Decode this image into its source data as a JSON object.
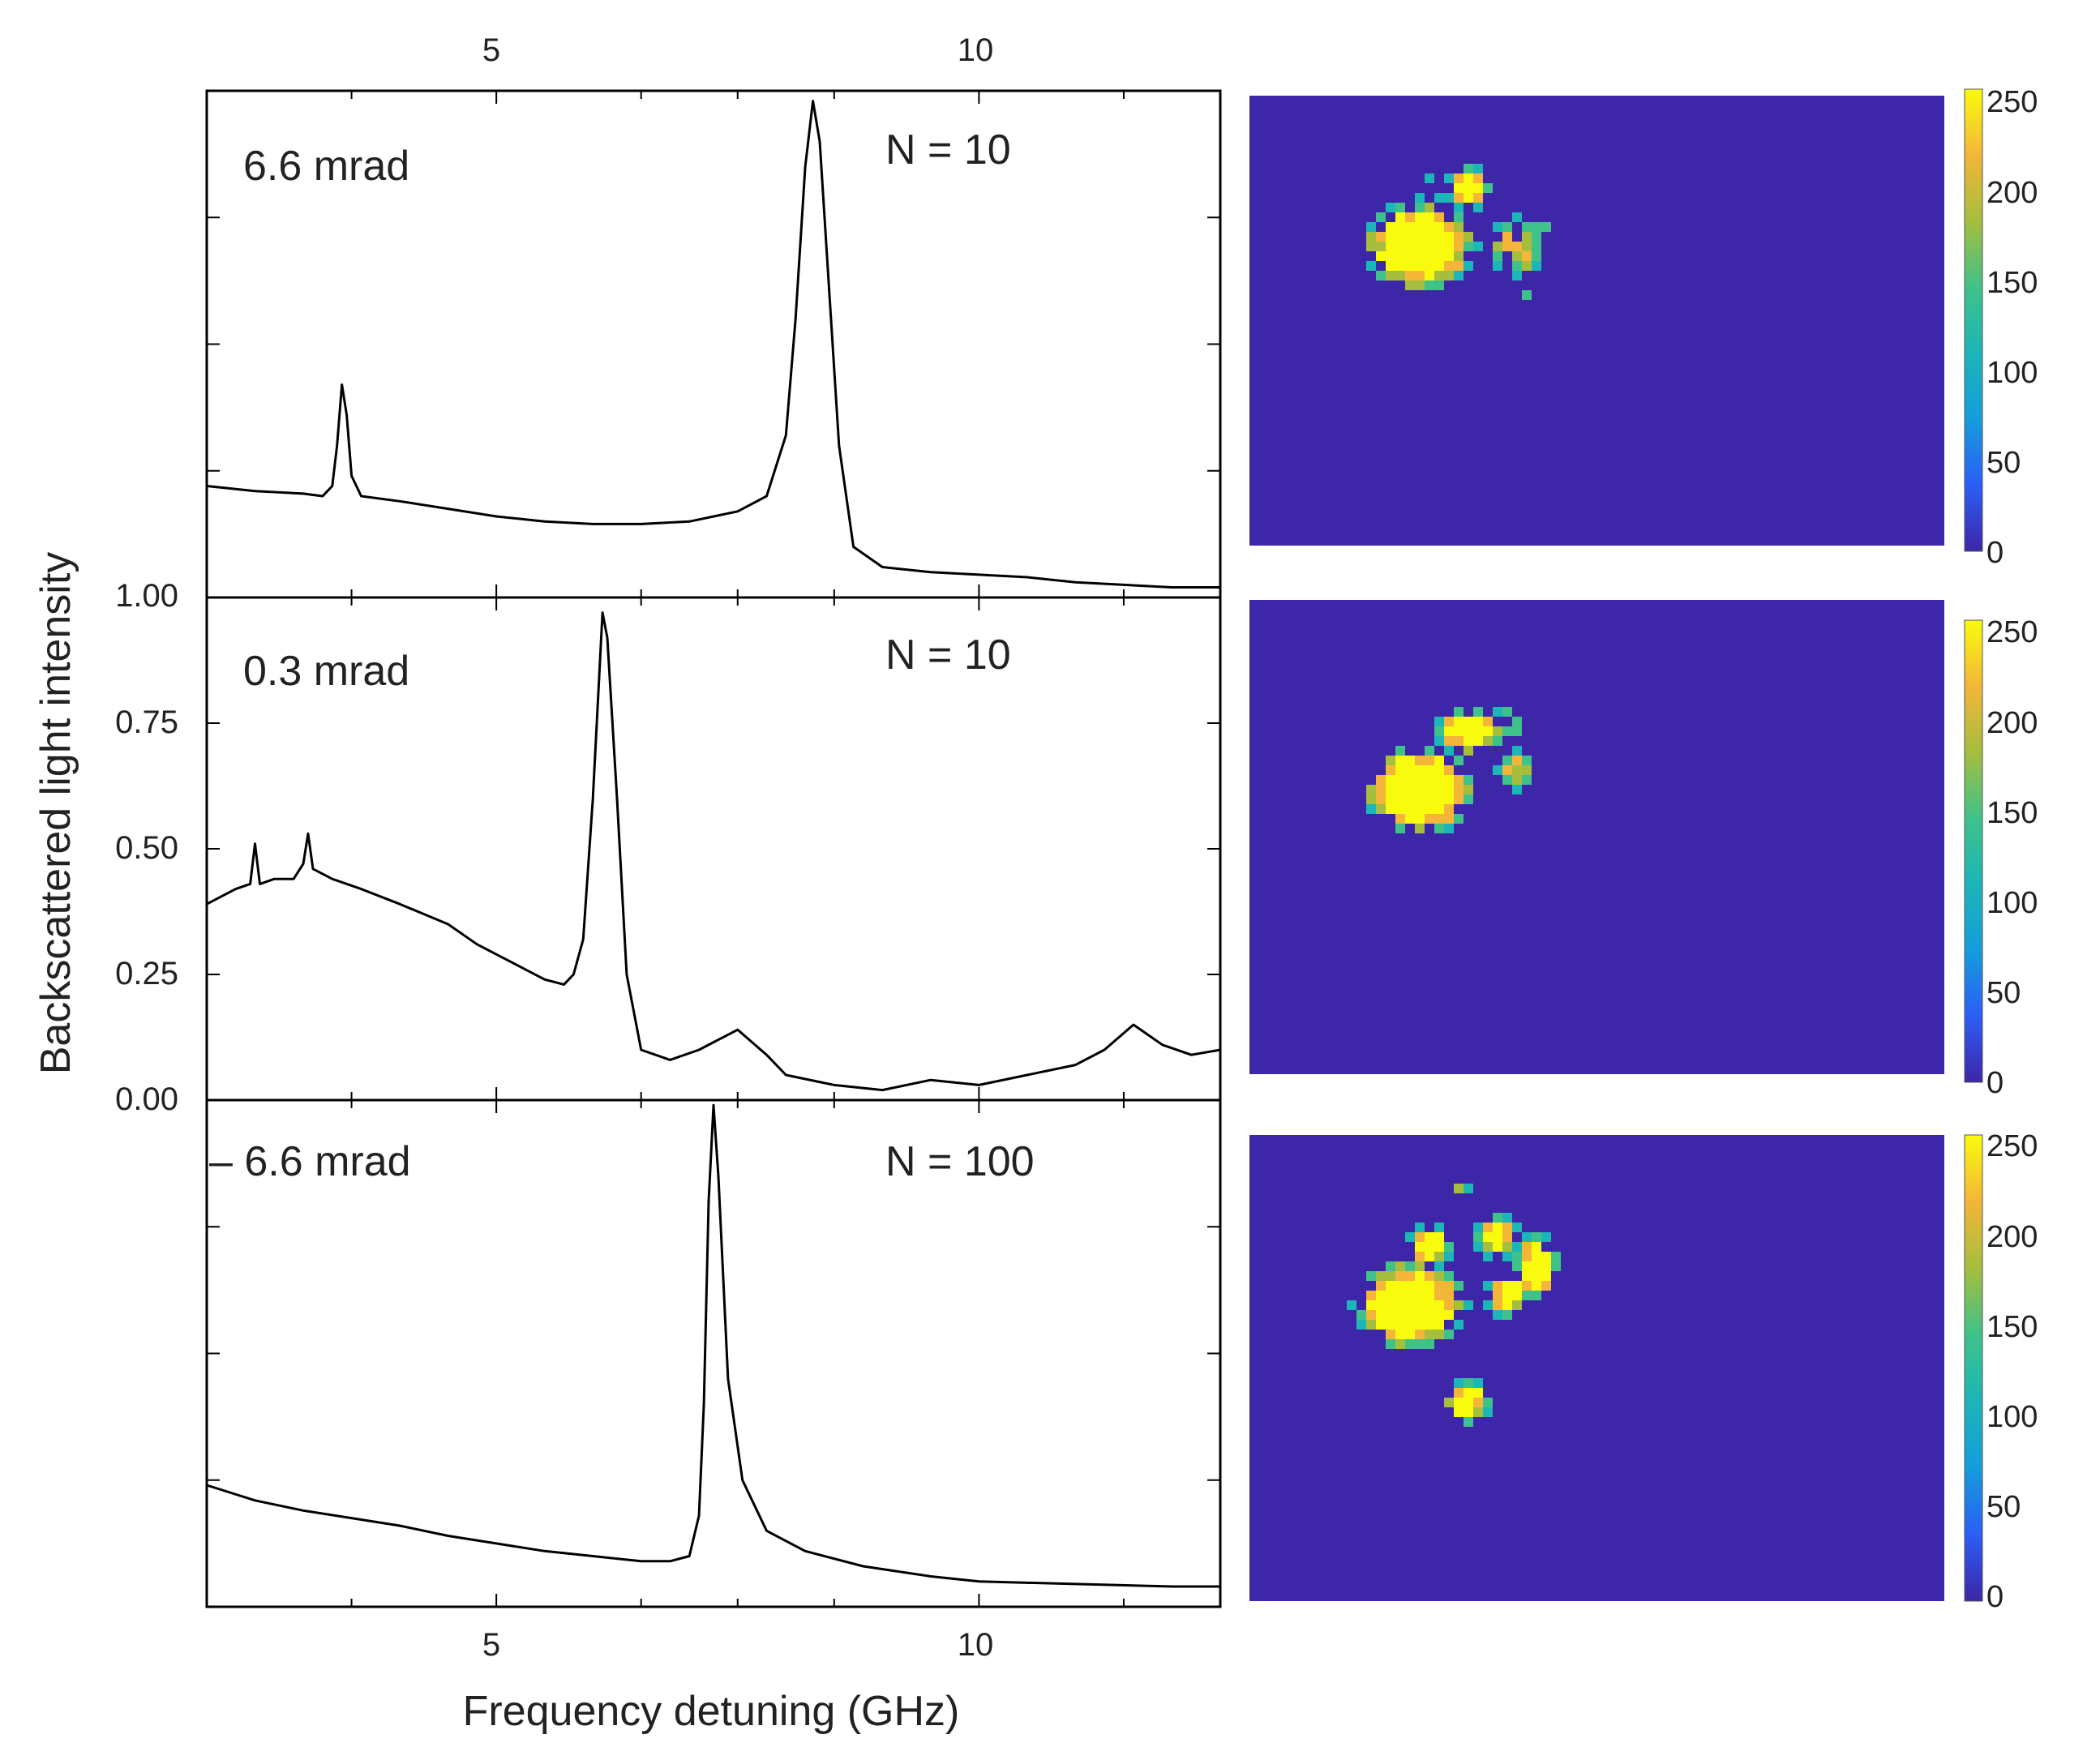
{
  "figure": {
    "xlabel": "Frequency detuning (GHz)",
    "ylabel": "Backscattered light intensity"
  },
  "colors": {
    "trace": "#000000",
    "map_background": "#3d26a8",
    "colormap": [
      "#3d26a8",
      "#2c5ef6",
      "#149ddc",
      "#1cb5b8",
      "#3fc28a",
      "#a5be3d",
      "#f3b639",
      "#f9fb0e"
    ]
  },
  "chart_data": [
    {
      "type": "line",
      "panel": "top",
      "xlabel": "Frequency detuning (GHz)",
      "ylabel": "Backscattered light intensity",
      "xlim": [
        2,
        12.5
      ],
      "ylim": [
        0,
        1
      ],
      "x_ticks": [
        5,
        10
      ],
      "x_tick_labels_top": [
        "5",
        "10"
      ],
      "y_tick_labels": [],
      "annotations": [
        "6.6 mrad",
        "N = 10"
      ],
      "series": [
        {
          "color": "#000000",
          "points": [
            [
              2.0,
              0.22
            ],
            [
              2.5,
              0.21
            ],
            [
              3.0,
              0.205
            ],
            [
              3.2,
              0.2
            ],
            [
              3.3,
              0.22
            ],
            [
              3.35,
              0.3
            ],
            [
              3.4,
              0.42
            ],
            [
              3.45,
              0.36
            ],
            [
              3.5,
              0.24
            ],
            [
              3.6,
              0.2
            ],
            [
              4.0,
              0.19
            ],
            [
              4.5,
              0.175
            ],
            [
              5.0,
              0.16
            ],
            [
              5.5,
              0.15
            ],
            [
              6.0,
              0.145
            ],
            [
              6.5,
              0.145
            ],
            [
              7.0,
              0.15
            ],
            [
              7.5,
              0.17
            ],
            [
              7.8,
              0.2
            ],
            [
              8.0,
              0.32
            ],
            [
              8.1,
              0.55
            ],
            [
              8.2,
              0.85
            ],
            [
              8.28,
              0.98
            ],
            [
              8.35,
              0.9
            ],
            [
              8.45,
              0.6
            ],
            [
              8.55,
              0.3
            ],
            [
              8.7,
              0.1
            ],
            [
              9.0,
              0.06
            ],
            [
              9.5,
              0.05
            ],
            [
              10.0,
              0.045
            ],
            [
              10.5,
              0.04
            ],
            [
              11.0,
              0.03
            ],
            [
              11.5,
              0.025
            ],
            [
              12.0,
              0.02
            ],
            [
              12.5,
              0.02
            ]
          ]
        }
      ]
    },
    {
      "type": "line",
      "panel": "middle",
      "xlabel": "Frequency detuning (GHz)",
      "ylabel": "Backscattered light intensity",
      "xlim": [
        2,
        12.5
      ],
      "ylim": [
        0,
        1
      ],
      "x_ticks": [
        5,
        10
      ],
      "y_ticks": [
        0,
        0.25,
        0.5,
        0.75,
        1
      ],
      "y_tick_labels": [
        "0.00",
        "0.25",
        "0.50",
        "0.75",
        "1.00"
      ],
      "annotations": [
        "0.3 mrad",
        "N = 10"
      ],
      "series": [
        {
          "color": "#000000",
          "points": [
            [
              2.0,
              0.39
            ],
            [
              2.3,
              0.42
            ],
            [
              2.45,
              0.43
            ],
            [
              2.5,
              0.51
            ],
            [
              2.55,
              0.43
            ],
            [
              2.7,
              0.44
            ],
            [
              2.9,
              0.44
            ],
            [
              3.0,
              0.47
            ],
            [
              3.05,
              0.53
            ],
            [
              3.1,
              0.46
            ],
            [
              3.3,
              0.44
            ],
            [
              3.6,
              0.42
            ],
            [
              4.0,
              0.39
            ],
            [
              4.5,
              0.35
            ],
            [
              4.8,
              0.31
            ],
            [
              5.0,
              0.29
            ],
            [
              5.3,
              0.26
            ],
            [
              5.5,
              0.24
            ],
            [
              5.7,
              0.23
            ],
            [
              5.8,
              0.25
            ],
            [
              5.9,
              0.32
            ],
            [
              6.0,
              0.6
            ],
            [
              6.1,
              0.97
            ],
            [
              6.15,
              0.92
            ],
            [
              6.25,
              0.6
            ],
            [
              6.35,
              0.25
            ],
            [
              6.5,
              0.1
            ],
            [
              6.8,
              0.08
            ],
            [
              7.1,
              0.1
            ],
            [
              7.5,
              0.14
            ],
            [
              7.8,
              0.09
            ],
            [
              8.0,
              0.05
            ],
            [
              8.5,
              0.03
            ],
            [
              9.0,
              0.02
            ],
            [
              9.5,
              0.04
            ],
            [
              10.0,
              0.03
            ],
            [
              10.5,
              0.05
            ],
            [
              11.0,
              0.07
            ],
            [
              11.3,
              0.1
            ],
            [
              11.6,
              0.15
            ],
            [
              11.9,
              0.11
            ],
            [
              12.2,
              0.09
            ],
            [
              12.5,
              0.1
            ]
          ]
        }
      ]
    },
    {
      "type": "line",
      "panel": "bottom",
      "xlabel": "Frequency detuning (GHz)",
      "ylabel": "Backscattered light intensity",
      "xlim": [
        2,
        12.5
      ],
      "ylim": [
        0,
        1
      ],
      "x_ticks": [
        5,
        10
      ],
      "x_tick_labels_bottom": [
        "5",
        "10"
      ],
      "y_tick_labels": [],
      "annotations": [
        "– 6.6 mrad",
        "N = 100"
      ],
      "series": [
        {
          "color": "#000000",
          "points": [
            [
              2.0,
              0.24
            ],
            [
              2.5,
              0.21
            ],
            [
              3.0,
              0.19
            ],
            [
              3.5,
              0.175
            ],
            [
              4.0,
              0.16
            ],
            [
              4.5,
              0.14
            ],
            [
              5.0,
              0.125
            ],
            [
              5.5,
              0.11
            ],
            [
              6.0,
              0.1
            ],
            [
              6.5,
              0.09
            ],
            [
              6.8,
              0.09
            ],
            [
              7.0,
              0.1
            ],
            [
              7.1,
              0.18
            ],
            [
              7.15,
              0.4
            ],
            [
              7.2,
              0.8
            ],
            [
              7.25,
              0.99
            ],
            [
              7.3,
              0.85
            ],
            [
              7.4,
              0.45
            ],
            [
              7.55,
              0.25
            ],
            [
              7.8,
              0.15
            ],
            [
              8.2,
              0.11
            ],
            [
              8.8,
              0.08
            ],
            [
              9.5,
              0.06
            ],
            [
              10.0,
              0.05
            ],
            [
              11.0,
              0.045
            ],
            [
              12.0,
              0.04
            ],
            [
              12.5,
              0.04
            ]
          ]
        }
      ]
    },
    {
      "type": "heatmap",
      "panel": "map-top",
      "colorbar": {
        "range": [
          0,
          250
        ],
        "tick_labels": [
          "0",
          "50",
          "100",
          "150",
          "200",
          "250"
        ]
      },
      "clusters": [
        {
          "label": "main blob",
          "peak": 250
        },
        {
          "label": "upper-right blob",
          "peak": 230
        },
        {
          "label": "right scattered",
          "peak": 150
        }
      ]
    },
    {
      "type": "heatmap",
      "panel": "map-middle",
      "colorbar": {
        "range": [
          0,
          250
        ],
        "tick_labels": [
          "0",
          "50",
          "100",
          "150",
          "200",
          "250"
        ]
      },
      "clusters": [
        {
          "label": "main blob",
          "peak": 250
        },
        {
          "label": "upper arc",
          "peak": 240
        },
        {
          "label": "right scattered",
          "peak": 150
        }
      ]
    },
    {
      "type": "heatmap",
      "panel": "map-bottom",
      "colorbar": {
        "range": [
          0,
          250
        ],
        "tick_labels": [
          "0",
          "50",
          "100",
          "150",
          "200",
          "250"
        ]
      },
      "clusters": [
        {
          "label": "main blob",
          "peak": 250
        },
        {
          "label": "upper arc",
          "peak": 220
        },
        {
          "label": "right blobs",
          "peak": 230
        },
        {
          "label": "bottom blob",
          "peak": 220
        }
      ]
    }
  ]
}
